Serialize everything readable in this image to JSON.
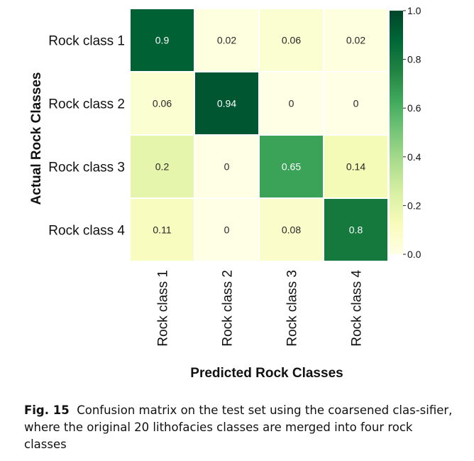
{
  "chart_data": {
    "type": "heatmap",
    "title": "",
    "xlabel": "Predicted Rock Classes",
    "ylabel": "Actual Rock Classes",
    "x_categories": [
      "Rock class 1",
      "Rock class 2",
      "Rock class 3",
      "Rock class 4"
    ],
    "y_categories": [
      "Rock class 1",
      "Rock class 2",
      "Rock class 3",
      "Rock class 4"
    ],
    "values": [
      [
        0.9,
        0.02,
        0.06,
        0.02
      ],
      [
        0.06,
        0.94,
        0,
        0
      ],
      [
        0.2,
        0,
        0.65,
        0.14
      ],
      [
        0.11,
        0,
        0.08,
        0.8
      ]
    ],
    "value_labels": [
      [
        "0.9",
        "0.02",
        "0.06",
        "0.02"
      ],
      [
        "0.06",
        "0.94",
        "0",
        "0"
      ],
      [
        "0.2",
        "0",
        "0.65",
        "0.14"
      ],
      [
        "0.11",
        "0",
        "0.08",
        "0.8"
      ]
    ],
    "colorscale": "YlGn",
    "vmin": 0.0,
    "vmax": 1.0,
    "colorbar_ticks": [
      0.0,
      0.2,
      0.4,
      0.6,
      0.8,
      1.0
    ],
    "colorbar_tick_labels": [
      "0.0",
      "0.2",
      "0.4",
      "0.6",
      "0.8",
      "1.0"
    ]
  },
  "caption": {
    "figure_label": "Fig. 15",
    "text": "Confusion matrix on the test set using the coarsened clas-sifier, where the original 20 lithofacies classes are merged into four rock classes"
  }
}
